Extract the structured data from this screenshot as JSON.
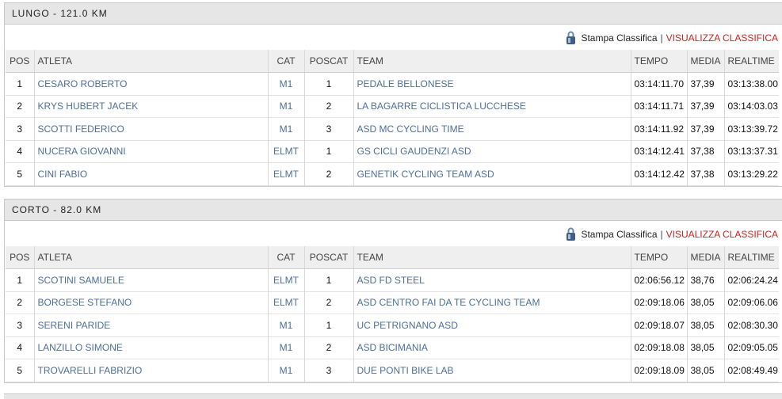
{
  "headers": {
    "pos": "POS",
    "atleta": "ATLETA",
    "cat": "CAT",
    "poscat": "POSCAT",
    "team": "TEAM",
    "tempo": "TEMPO",
    "media": "MEDIA",
    "realtime": "REALTIME"
  },
  "toolbar": {
    "print_label": "Stamp​a Classifica",
    "separator": "|",
    "view_label": "VISUALIZZA CLASSIFICA",
    "print_icon": "printer-lock-icon"
  },
  "sections": [
    {
      "title": "LUNGO - 121.0 KM",
      "rows": [
        {
          "pos": "1",
          "atleta": "CESARO ROBERTO",
          "cat": "M1",
          "poscat": "1",
          "team": "PEDALE BELLONESE",
          "tempo": "03:14:11.70",
          "media": "37,39",
          "realtime": "03:13:38.00"
        },
        {
          "pos": "2",
          "atleta": "KRYS HUBERT JACEK",
          "cat": "M1",
          "poscat": "2",
          "team": "LA BAGARRE CICLISTICA LUCCHESE",
          "tempo": "03:14:11.71",
          "media": "37,39",
          "realtime": "03:14:03.03"
        },
        {
          "pos": "3",
          "atleta": "SCOTTI FEDERICO",
          "cat": "M1",
          "poscat": "3",
          "team": "ASD MC CYCLING TIME",
          "tempo": "03:14:11.92",
          "media": "37,39",
          "realtime": "03:13:39.72"
        },
        {
          "pos": "4",
          "atleta": "NUCERA GIOVANNI",
          "cat": "ELMT",
          "poscat": "1",
          "team": "GS CICLI GAUDENZI ASD",
          "tempo": "03:14:12.41",
          "media": "37,38",
          "realtime": "03:13:37.31"
        },
        {
          "pos": "5",
          "atleta": "CINI FABIO",
          "cat": "ELMT",
          "poscat": "2",
          "team": "GENETIK CYCLING TEAM ASD",
          "tempo": "03:14:12.42",
          "media": "37,38",
          "realtime": "03:13:29.22"
        }
      ]
    },
    {
      "title": "CORTO - 82.0 KM",
      "rows": [
        {
          "pos": "1",
          "atleta": "SCOTINI SAMUELE",
          "cat": "ELMT",
          "poscat": "1",
          "team": "ASD FD STEEL",
          "tempo": "02:06:56.12",
          "media": "38,76",
          "realtime": "02:06:24.24"
        },
        {
          "pos": "2",
          "atleta": "BORGESE STEFANO",
          "cat": "ELMT",
          "poscat": "2",
          "team": "ASD CENTRO FAI DA TE CYCLING TEAM",
          "tempo": "02:09:18.06",
          "media": "38,05",
          "realtime": "02:09:06.06"
        },
        {
          "pos": "3",
          "atleta": "SERENI PARIDE",
          "cat": "M1",
          "poscat": "1",
          "team": "UC PETRIGNANO ASD",
          "tempo": "02:09:18.07",
          "media": "38,05",
          "realtime": "02:08:30.30"
        },
        {
          "pos": "4",
          "atleta": "LANZILLO SIMONE",
          "cat": "M1",
          "poscat": "2",
          "team": "ASD BICIMANIA",
          "tempo": "02:09:18.08",
          "media": "38,05",
          "realtime": "02:09:05.05"
        },
        {
          "pos": "5",
          "atleta": "TROVARELLI FABRIZIO",
          "cat": "M1",
          "poscat": "3",
          "team": "DUE PONTI BIKE LAB",
          "tempo": "02:09:18.09",
          "media": "38,05",
          "realtime": "02:08:49.49"
        }
      ]
    }
  ]
}
